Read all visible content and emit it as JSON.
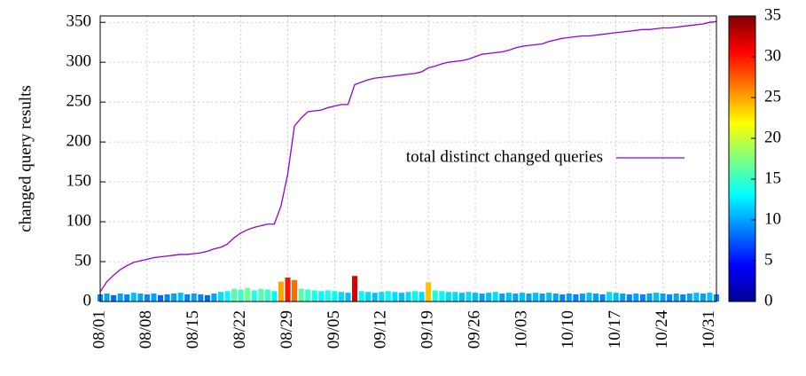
{
  "chart_data": {
    "type": "line_bar",
    "ylabel": "changed query results",
    "xlim": [
      0,
      92
    ],
    "xticks": [
      {
        "value": 0,
        "label": "08/01"
      },
      {
        "value": 7,
        "label": "08/08"
      },
      {
        "value": 14,
        "label": "08/15"
      },
      {
        "value": 21,
        "label": "08/22"
      },
      {
        "value": 28,
        "label": "08/29"
      },
      {
        "value": 35,
        "label": "09/05"
      },
      {
        "value": 42,
        "label": "09/12"
      },
      {
        "value": 49,
        "label": "09/19"
      },
      {
        "value": 56,
        "label": "09/26"
      },
      {
        "value": 63,
        "label": "10/03"
      },
      {
        "value": 70,
        "label": "10/10"
      },
      {
        "value": 77,
        "label": "10/17"
      },
      {
        "value": 84,
        "label": "10/24"
      },
      {
        "value": 91,
        "label": "10/31"
      }
    ],
    "ylim": [
      0,
      358
    ],
    "yticks": [
      0,
      50,
      100,
      150,
      200,
      250,
      300,
      350
    ],
    "grid": true,
    "x": [
      0,
      1,
      2,
      3,
      4,
      5,
      6,
      7,
      8,
      9,
      10,
      11,
      12,
      13,
      14,
      15,
      16,
      17,
      18,
      19,
      20,
      21,
      22,
      23,
      24,
      25,
      26,
      27,
      28,
      29,
      30,
      31,
      32,
      33,
      34,
      35,
      36,
      37,
      38,
      39,
      40,
      41,
      42,
      43,
      44,
      45,
      46,
      47,
      48,
      49,
      50,
      51,
      52,
      53,
      54,
      55,
      56,
      57,
      58,
      59,
      60,
      61,
      62,
      63,
      64,
      65,
      66,
      67,
      68,
      69,
      70,
      71,
      72,
      73,
      74,
      75,
      76,
      77,
      78,
      79,
      80,
      81,
      82,
      83,
      84,
      85,
      86,
      87,
      88,
      89,
      90,
      91,
      92
    ],
    "series": [
      {
        "name": "total distinct changed queries",
        "color": "#9400d3",
        "kind": "line",
        "values": [
          12,
          25,
          33,
          40,
          45,
          49,
          51,
          53,
          55,
          56,
          57,
          58,
          59,
          59,
          60,
          61,
          63,
          66,
          68,
          72,
          80,
          86,
          90,
          93,
          95,
          97,
          97,
          120,
          160,
          220,
          230,
          238,
          239,
          240,
          243,
          245,
          247,
          247,
          272,
          275,
          278,
          280,
          281,
          282,
          283,
          284,
          285,
          286,
          288,
          293,
          295,
          298,
          300,
          301,
          302,
          304,
          307,
          310,
          311,
          312,
          313,
          315,
          318,
          320,
          321,
          322,
          323,
          326,
          328,
          330,
          331,
          332,
          333,
          333,
          334,
          335,
          336,
          337,
          338,
          339,
          340,
          341,
          341,
          342,
          343,
          343,
          344,
          345,
          346,
          347,
          348,
          350,
          351
        ]
      },
      {
        "kind": "bar",
        "values": [
          9,
          10,
          8,
          10,
          9,
          11,
          10,
          9,
          10,
          8,
          9,
          10,
          11,
          9,
          10,
          9,
          8,
          10,
          12,
          13,
          16,
          15,
          17,
          14,
          16,
          15,
          13,
          25,
          30,
          27,
          16,
          15,
          14,
          13,
          14,
          13,
          12,
          11,
          32,
          13,
          12,
          11,
          12,
          13,
          12,
          11,
          12,
          13,
          12,
          24,
          14,
          13,
          12,
          12,
          11,
          12,
          11,
          10,
          11,
          12,
          10,
          11,
          10,
          11,
          10,
          11,
          10,
          11,
          10,
          9,
          10,
          9,
          10,
          11,
          10,
          9,
          12,
          11,
          10,
          9,
          10,
          9,
          10,
          11,
          10,
          9,
          10,
          9,
          10,
          11,
          10,
          11,
          9
        ]
      }
    ],
    "colormap": "jet",
    "clim": [
      0,
      35
    ],
    "cticks": [
      0,
      5,
      10,
      15,
      20,
      25,
      30,
      35
    ],
    "legend": "center-right"
  }
}
